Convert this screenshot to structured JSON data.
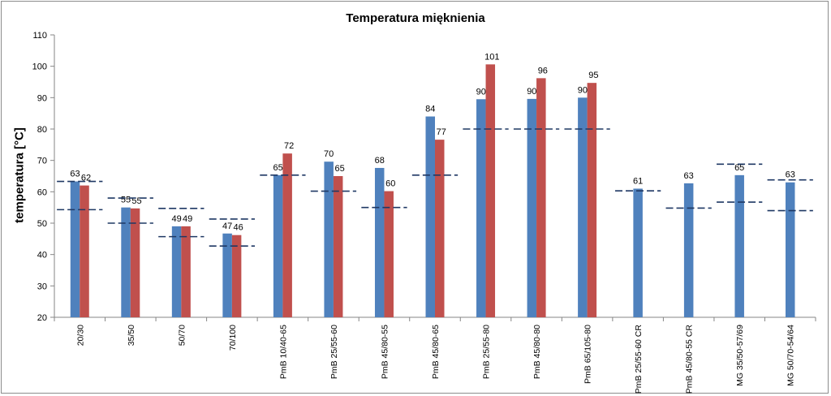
{
  "chart_data": {
    "type": "bar",
    "title": "Temperatura mięknienia",
    "xlabel": "",
    "ylabel": "temperatura [°C]",
    "ylim": [
      20,
      110
    ],
    "yticks": [
      20,
      30,
      40,
      50,
      60,
      70,
      80,
      90,
      100,
      110
    ],
    "grid": "none",
    "legend": "none",
    "colors": {
      "series1": "#4f81bd",
      "series2": "#c0504d",
      "range_lines": "#1f3864",
      "axis": "#868686"
    },
    "categories": [
      "20/30",
      "35/50",
      "50/70",
      "70/100",
      "PmB 10/40-65",
      "PmB 25/55-60",
      "PmB 45/80-55",
      "PmB 45/80-65",
      "PmB 25/55-80",
      "PmB 45/80-80",
      "PmB 65/105-80",
      "PmB 25/55-60 CR",
      "PmB 45/80-55 CR",
      "MG 35/50-57/69",
      "MG 50/70-54/64"
    ],
    "series": [
      {
        "values": [
          63.3,
          55,
          49,
          46.7,
          65.3,
          69.6,
          67.6,
          84,
          89.5,
          89.6,
          90,
          61,
          62.7,
          65.3,
          63
        ],
        "labels": [
          "63",
          "55",
          "49",
          "47",
          "65",
          "70",
          "68",
          "84",
          "90",
          "90",
          "90",
          "61",
          "63",
          "65",
          "63"
        ]
      },
      {
        "values": [
          62,
          54.7,
          49,
          46.2,
          72.2,
          65,
          60.2,
          76.6,
          100.6,
          96.2,
          94.7,
          null,
          null,
          null,
          null
        ],
        "labels": [
          "62",
          "55",
          "49",
          "46",
          "72",
          "65",
          "60",
          "77",
          "101",
          "96",
          "95",
          "",
          "",
          "",
          ""
        ]
      }
    ],
    "range_lines": [
      {
        "values": [
          63.3,
          54.3
        ]
      },
      {
        "values": [
          58,
          50
        ]
      },
      {
        "values": [
          54.7,
          45.7
        ]
      },
      {
        "values": [
          51.3,
          42.7
        ]
      },
      {
        "values": [
          65.3
        ]
      },
      {
        "values": [
          60.2
        ]
      },
      {
        "values": [
          55
        ]
      },
      {
        "values": [
          65.3
        ]
      },
      {
        "values": [
          80
        ]
      },
      {
        "values": [
          80
        ]
      },
      {
        "values": [
          80
        ]
      },
      {
        "values": [
          60.3
        ]
      },
      {
        "values": [
          54.8
        ]
      },
      {
        "values": [
          68.8,
          56.7
        ]
      },
      {
        "values": [
          63.8,
          54
        ]
      }
    ]
  }
}
